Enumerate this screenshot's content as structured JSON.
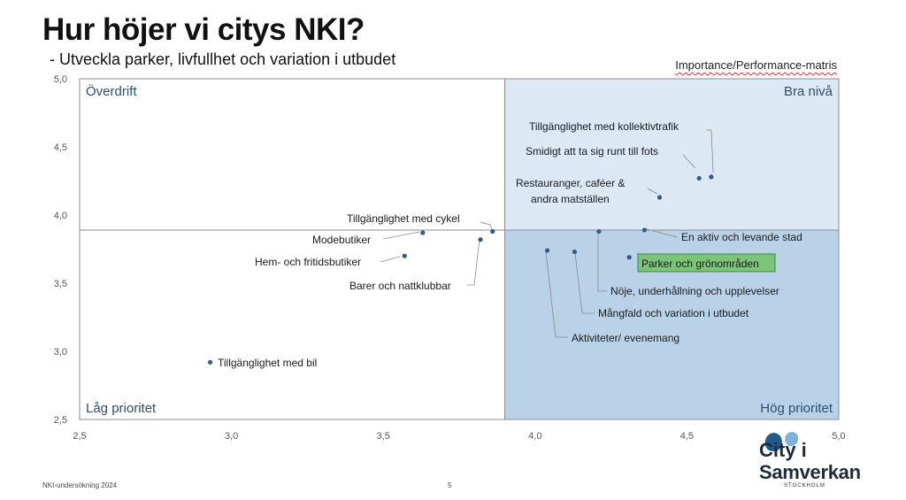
{
  "header": {
    "title": "Hur höjer vi citys NKI?",
    "subtitle": "- Utveckla parker, livfullhet och variation i utbudet",
    "matrix_label": "Importance/Performance-matris"
  },
  "footer": {
    "source": "NKI-undersökning 2024",
    "page": "5"
  },
  "logo": {
    "line1": "City i",
    "line2": "Samverkan",
    "line3": "STOCKHOLM",
    "colors": [
      "#1f5c8c",
      "#7fb2dc"
    ]
  },
  "colors": {
    "point": "#2c5d8a",
    "quad_top_right": "#dce8f4",
    "quad_bottom_right": "#b9d2e8",
    "quad_text": "#2c4f73",
    "highlight_fill": "#7cc47a",
    "highlight_border": "#3a8a3a",
    "leader": "#8a8a8a"
  },
  "chart_data": {
    "type": "scatter",
    "xlim": [
      2.5,
      5.0
    ],
    "ylim": [
      2.5,
      5.0
    ],
    "x_ticks": [
      "2,5",
      "3,0",
      "3,5",
      "4,0",
      "4,5",
      "5,0"
    ],
    "y_ticks": [
      "2,5",
      "3,0",
      "3,5",
      "4,0",
      "4,5",
      "5,0"
    ],
    "x_tick_values": [
      2.5,
      3.0,
      3.5,
      4.0,
      4.5,
      5.0
    ],
    "y_tick_values": [
      2.5,
      3.0,
      3.5,
      4.0,
      4.5,
      5.0
    ],
    "divider_x": 3.9,
    "divider_y": 3.89,
    "quadrants": {
      "top_left": "Överdrift",
      "top_right": "Bra nivå",
      "bottom_left": "Låg prioritet",
      "bottom_right": "Hög prioritet"
    },
    "points": [
      {
        "label": "Tillgänglighet med kollektivtrafik",
        "x": 4.58,
        "y": 4.28
      },
      {
        "label": "Smidigt att ta sig runt till fots",
        "x": 4.54,
        "y": 4.27
      },
      {
        "label": "Restauranger, caféer & andra matställen",
        "x": 4.41,
        "y": 4.13
      },
      {
        "label": "En aktiv och levande stad",
        "x": 4.36,
        "y": 3.89
      },
      {
        "label": "Parker och grönområden",
        "x": 4.31,
        "y": 3.69,
        "highlight": true
      },
      {
        "label": "Nöje, underhållning och upplevelser",
        "x": 4.21,
        "y": 3.88
      },
      {
        "label": "Mångfald och variation i utbudet",
        "x": 4.13,
        "y": 3.73
      },
      {
        "label": "Aktiviteter/ evenemang",
        "x": 4.04,
        "y": 3.74
      },
      {
        "label": "Tillgänglighet med cykel",
        "x": 3.86,
        "y": 3.88
      },
      {
        "label": "Barer och nattklubbar",
        "x": 3.82,
        "y": 3.82
      },
      {
        "label": "Modebutiker",
        "x": 3.63,
        "y": 3.87
      },
      {
        "label": "Hem- och fritidsbutiker",
        "x": 3.57,
        "y": 3.7
      },
      {
        "label": "Tillgänglighet med bil",
        "x": 2.93,
        "y": 2.92
      }
    ]
  }
}
